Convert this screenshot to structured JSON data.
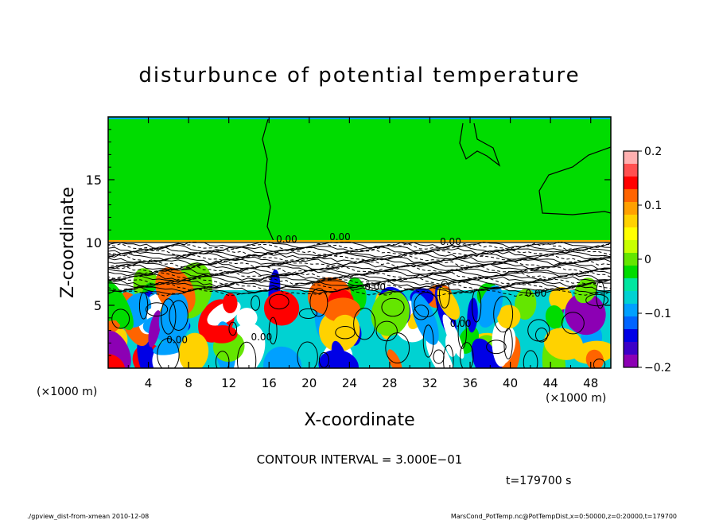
{
  "chart_data": {
    "type": "heatmap",
    "title": "disturbunce of potential temperature",
    "xlabel": "X-coordinate",
    "ylabel": "Z-coordinate",
    "x_unit_left": "(×1000 m)",
    "x_unit_right": "(×1000 m)",
    "xlim": [
      0,
      50
    ],
    "ylim": [
      0,
      20
    ],
    "x_ticks": [
      4,
      8,
      12,
      16,
      20,
      24,
      28,
      32,
      36,
      40,
      44,
      48
    ],
    "y_ticks": [
      5,
      10,
      15
    ],
    "colorbar": {
      "range": [
        -0.2,
        0.2
      ],
      "tick_values": [
        0.2,
        0.1,
        0,
        -0.1,
        -0.2
      ],
      "tick_labels": [
        "0.2",
        "0.1",
        "0",
        "−0.1",
        "−0.2"
      ],
      "colors": [
        "#ffb0b0",
        "#ff5050",
        "#ff0000",
        "#ff6400",
        "#ffa000",
        "#ffd200",
        "#ffff00",
        "#c8ff00",
        "#64e600",
        "#00dc00",
        "#00e6a0",
        "#00d2d2",
        "#00a0ff",
        "#0064ff",
        "#0000e6",
        "#3c00c8",
        "#8c00b4"
      ]
    },
    "contour_labels": [
      "0.00",
      "0.00",
      "0.00",
      "0.00",
      "0.00",
      "0.00",
      "0.00",
      "0.00"
    ],
    "contour_interval_text": "CONTOUR INTERVAL = 3.000E−01",
    "time_text": "t=179700 s"
  },
  "footer": {
    "left": "./gpview_dist-from-xmean  2010-12-08",
    "right": "MarsCond_PotTemp.nc@PotTempDist,x=0:50000,z=0:20000,t=179700"
  }
}
